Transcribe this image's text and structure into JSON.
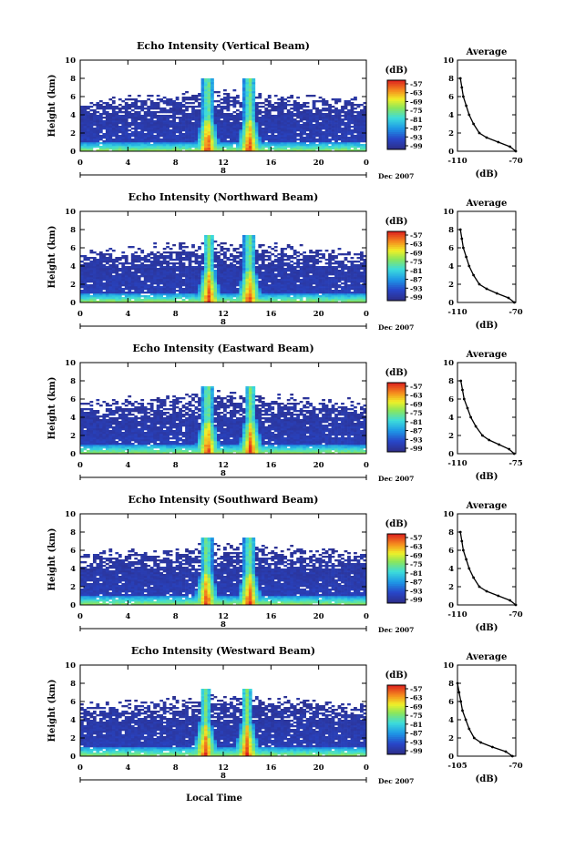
{
  "figure": {
    "panels": [
      {
        "title": "Echo Intensity (Vertical Beam)",
        "avg_title": "Average",
        "avg_xticks": [
          "-110",
          "-70"
        ]
      },
      {
        "title": "Echo Intensity (Northward Beam)",
        "avg_title": "Average",
        "avg_xticks": [
          "-110",
          "-70"
        ]
      },
      {
        "title": "Echo Intensity (Eastward Beam)",
        "avg_title": "Average",
        "avg_xticks": [
          "-110",
          "-75"
        ]
      },
      {
        "title": "Echo Intensity (Southward Beam)",
        "avg_title": "Average",
        "avg_xticks": [
          "-110",
          "-70"
        ]
      },
      {
        "title": "Echo Intensity (Westward Beam)",
        "avg_title": "Average",
        "avg_xticks": [
          "-105",
          "-70"
        ]
      }
    ],
    "ylabel": "Height (km)",
    "yticks": [
      "0",
      "2",
      "4",
      "6",
      "8",
      "10"
    ],
    "xticks": [
      "0",
      "4",
      "8",
      "12",
      "16",
      "20",
      "0"
    ],
    "day_label": "8",
    "month_label": "Dec 2007",
    "cbar_unit": "(dB)",
    "cbar_ticks": [
      "-57",
      "-63",
      "-69",
      "-75",
      "-81",
      "-87",
      "-93",
      "-99"
    ],
    "avg_xlabel": "(dB)",
    "avg_yticks": [
      "0",
      "2",
      "4",
      "6",
      "8",
      "10"
    ],
    "xlabel_bottom": "Local Time"
  },
  "chart_data": [
    {
      "type": "heatmap",
      "title": "Echo Intensity (Vertical Beam)",
      "ylabel": "Height (km)",
      "xlabel": "Local Time",
      "x_range_hours": [
        0,
        24
      ],
      "ylim": [
        0,
        10
      ],
      "color_range_db": [
        -99,
        -57
      ],
      "cbar_ticks": [
        -57,
        -63,
        -69,
        -75,
        -81,
        -87,
        -93,
        -99
      ],
      "date": "8 Dec 2007",
      "strong_echo_events": [
        {
          "center_hour": 10.7,
          "top_km": 8
        },
        {
          "center_hour": 14.2,
          "top_km": 8
        }
      ],
      "average_profile": {
        "xlabel": "(dB)",
        "xlim": [
          -110,
          -70
        ],
        "ylim": [
          0,
          10
        ],
        "height_km": [
          0,
          0.5,
          1,
          1.5,
          2,
          3,
          4,
          5,
          6,
          7,
          8
        ],
        "db": [
          -70,
          -74,
          -82,
          -90,
          -95,
          -99,
          -102,
          -104,
          -106,
          -107,
          -108
        ]
      }
    },
    {
      "type": "heatmap",
      "title": "Echo Intensity (Northward Beam)",
      "ylabel": "Height (km)",
      "xlabel": "Local Time",
      "x_range_hours": [
        0,
        24
      ],
      "ylim": [
        0,
        10
      ],
      "color_range_db": [
        -99,
        -57
      ],
      "cbar_ticks": [
        -57,
        -63,
        -69,
        -75,
        -81,
        -87,
        -93,
        -99
      ],
      "date": "8 Dec 2007",
      "strong_echo_events": [
        {
          "center_hour": 10.8,
          "top_km": 7.5
        },
        {
          "center_hour": 14.2,
          "top_km": 7.5
        }
      ],
      "average_profile": {
        "xlabel": "(dB)",
        "xlim": [
          -110,
          -70
        ],
        "ylim": [
          0,
          10
        ],
        "height_km": [
          0,
          0.5,
          1,
          1.5,
          2,
          3,
          4,
          5,
          6,
          7,
          8
        ],
        "db": [
          -71,
          -75,
          -83,
          -90,
          -95,
          -99,
          -102,
          -104,
          -106,
          -107,
          -108
        ]
      }
    },
    {
      "type": "heatmap",
      "title": "Echo Intensity (Eastward Beam)",
      "ylabel": "Height (km)",
      "xlabel": "Local Time",
      "x_range_hours": [
        0,
        24
      ],
      "ylim": [
        0,
        10
      ],
      "color_range_db": [
        -99,
        -57
      ],
      "cbar_ticks": [
        -57,
        -63,
        -69,
        -75,
        -81,
        -87,
        -93,
        -99
      ],
      "date": "8 Dec 2007",
      "strong_echo_events": [
        {
          "center_hour": 10.7,
          "top_km": 7.5
        },
        {
          "center_hour": 14.3,
          "top_km": 7.5
        }
      ],
      "average_profile": {
        "xlabel": "(dB)",
        "xlim": [
          -110,
          -75
        ],
        "ylim": [
          0,
          10
        ],
        "height_km": [
          0,
          0.5,
          1,
          1.5,
          2,
          3,
          4,
          5,
          6,
          7,
          8
        ],
        "db": [
          -76,
          -79,
          -85,
          -91,
          -95,
          -99,
          -102,
          -104,
          -106,
          -107,
          -108
        ]
      }
    },
    {
      "type": "heatmap",
      "title": "Echo Intensity (Southward Beam)",
      "ylabel": "Height (km)",
      "xlabel": "Local Time",
      "x_range_hours": [
        0,
        24
      ],
      "ylim": [
        0,
        10
      ],
      "color_range_db": [
        -99,
        -57
      ],
      "cbar_ticks": [
        -57,
        -63,
        -69,
        -75,
        -81,
        -87,
        -93,
        -99
      ],
      "date": "8 Dec 2007",
      "strong_echo_events": [
        {
          "center_hour": 10.6,
          "top_km": 7.5
        },
        {
          "center_hour": 14.2,
          "top_km": 7.5
        }
      ],
      "average_profile": {
        "xlabel": "(dB)",
        "xlim": [
          -110,
          -70
        ],
        "ylim": [
          0,
          10
        ],
        "height_km": [
          0,
          0.5,
          1,
          1.5,
          2,
          3,
          4,
          5,
          6,
          7,
          8
        ],
        "db": [
          -70,
          -74,
          -82,
          -90,
          -95,
          -99,
          -102,
          -104,
          -106,
          -107,
          -108
        ]
      }
    },
    {
      "type": "heatmap",
      "title": "Echo Intensity (Westward Beam)",
      "ylabel": "Height (km)",
      "xlabel": "Local Time",
      "x_range_hours": [
        0,
        24
      ],
      "ylim": [
        0,
        10
      ],
      "color_range_db": [
        -99,
        -57
      ],
      "cbar_ticks": [
        -57,
        -63,
        -69,
        -75,
        -81,
        -87,
        -93,
        -99
      ],
      "date": "8 Dec 2007",
      "strong_echo_events": [
        {
          "center_hour": 10.5,
          "top_km": 7.5
        },
        {
          "center_hour": 14.0,
          "top_km": 7.5
        }
      ],
      "average_profile": {
        "xlabel": "(dB)",
        "xlim": [
          -105,
          -70
        ],
        "ylim": [
          0,
          10
        ],
        "height_km": [
          0,
          0.5,
          1,
          1.5,
          2,
          3,
          4,
          5,
          6,
          7,
          8
        ],
        "db": [
          -72,
          -76,
          -84,
          -91,
          -95,
          -98,
          -100,
          -102,
          -103,
          -104,
          -105
        ]
      }
    }
  ]
}
